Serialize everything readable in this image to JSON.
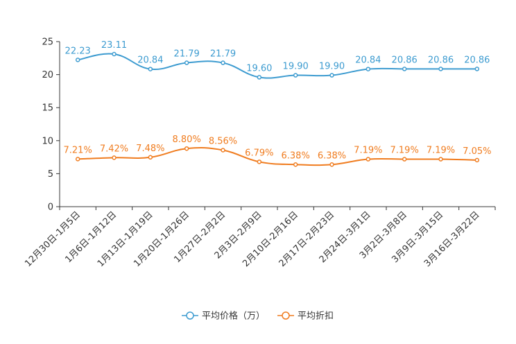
{
  "chart_data": {
    "type": "line",
    "title": "",
    "xlabel": "",
    "ylabel": "",
    "ylim": [
      0,
      25
    ],
    "yticks": [
      0,
      5,
      10,
      15,
      20,
      25
    ],
    "grid": false,
    "legend_position": "bottom-center",
    "categories": [
      "12月30日-1月5日",
      "1月6日-1月12日",
      "1月13日-1月19日",
      "1月20日-1月26日",
      "1月27日-2月2日",
      "2月3日-2月9日",
      "2月10日-2月16日",
      "2月17日-2月23日",
      "2月24日-3月1日",
      "3月2日-3月8日",
      "3月9日-3月15日",
      "3月16日-3月22日"
    ],
    "series": [
      {
        "name": "平均价格（万）",
        "color": "#3c9bd0",
        "values": [
          22.23,
          23.11,
          20.84,
          21.79,
          21.79,
          19.6,
          19.9,
          19.9,
          20.84,
          20.86,
          20.86,
          20.86
        ],
        "labels": [
          "22.23",
          "23.11",
          "20.84",
          "21.79",
          "21.79",
          "19.60",
          "19.90",
          "19.90",
          "20.84",
          "20.86",
          "20.86",
          "20.86"
        ]
      },
      {
        "name": "平均折扣",
        "color": "#f07c1f",
        "values": [
          7.21,
          7.42,
          7.48,
          8.8,
          8.56,
          6.79,
          6.38,
          6.38,
          7.19,
          7.19,
          7.19,
          7.05
        ],
        "labels": [
          "7.21%",
          "7.42%",
          "7.48%",
          "8.80%",
          "8.56%",
          "6.79%",
          "6.38%",
          "6.38%",
          "7.19%",
          "7.19%",
          "7.19%",
          "7.05%"
        ]
      }
    ]
  }
}
